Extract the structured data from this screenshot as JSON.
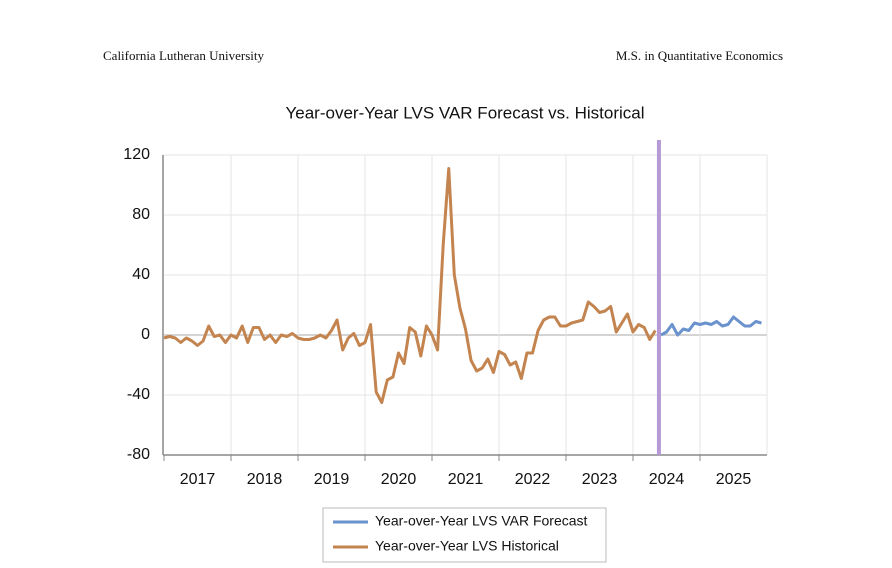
{
  "header": {
    "left": "California Lutheran University",
    "right": "M.S. in Quantitative Economics"
  },
  "chart_data": {
    "type": "line",
    "title": "Year-over-Year LVS VAR Forecast vs. Historical",
    "xlim": [
      2017,
      2026
    ],
    "xticks": [
      2017,
      2018,
      2019,
      2020,
      2021,
      2022,
      2023,
      2024,
      2025
    ],
    "ylim": [
      -80,
      120
    ],
    "yticks": [
      120,
      80,
      40,
      0,
      -40,
      -80
    ],
    "grid": true,
    "series": [
      {
        "name": "Year-over-Year LVS VAR Forecast",
        "color": "#6a92cc",
        "x": [
          2024.417,
          2024.5,
          2024.583,
          2024.667,
          2024.75,
          2024.833,
          2024.917,
          2025.0,
          2025.083,
          2025.167,
          2025.25,
          2025.333,
          2025.417,
          2025.5,
          2025.583,
          2025.667,
          2025.75,
          2025.833,
          2025.917
        ],
        "values": [
          0,
          2,
          7,
          0,
          4,
          3,
          8,
          7,
          8,
          7,
          9,
          6,
          7,
          12,
          9,
          6,
          6,
          9,
          8
        ]
      },
      {
        "name": "Year-over-Year LVS Historical",
        "color": "#c4844f",
        "x": [
          2017.0,
          2017.083,
          2017.167,
          2017.25,
          2017.333,
          2017.417,
          2017.5,
          2017.583,
          2017.667,
          2017.75,
          2017.833,
          2017.917,
          2018.0,
          2018.083,
          2018.167,
          2018.25,
          2018.333,
          2018.417,
          2018.5,
          2018.583,
          2018.667,
          2018.75,
          2018.833,
          2018.917,
          2019.0,
          2019.083,
          2019.167,
          2019.25,
          2019.333,
          2019.417,
          2019.5,
          2019.583,
          2019.667,
          2019.75,
          2019.833,
          2019.917,
          2020.0,
          2020.083,
          2020.167,
          2020.25,
          2020.333,
          2020.417,
          2020.5,
          2020.583,
          2020.667,
          2020.75,
          2020.833,
          2020.917,
          2021.0,
          2021.083,
          2021.167,
          2021.25,
          2021.333,
          2021.417,
          2021.5,
          2021.583,
          2021.667,
          2021.75,
          2021.833,
          2021.917,
          2022.0,
          2022.083,
          2022.167,
          2022.25,
          2022.333,
          2022.417,
          2022.5,
          2022.583,
          2022.667,
          2022.75,
          2022.833,
          2022.917,
          2023.0,
          2023.083,
          2023.167,
          2023.25,
          2023.333,
          2023.417,
          2023.5,
          2023.583,
          2023.667,
          2023.75,
          2023.833,
          2023.917,
          2024.0,
          2024.083,
          2024.167,
          2024.25,
          2024.333
        ],
        "values": [
          -2,
          -1,
          -2,
          -5,
          -2,
          -4,
          -7,
          -4,
          6,
          -1,
          0,
          -5,
          0,
          -2,
          6,
          -5,
          5,
          5,
          -3,
          0,
          -5,
          0,
          -1,
          1,
          -2,
          -3,
          -3,
          -2,
          0,
          -2,
          3,
          10,
          -10,
          -2,
          1,
          -7,
          -5,
          7,
          -38,
          -45,
          -30,
          -28,
          -12,
          -19,
          5,
          2,
          -14,
          6,
          0,
          -10,
          60,
          111,
          40,
          18,
          4,
          -17,
          -24,
          -22,
          -16,
          -25,
          -11,
          -13,
          -20,
          -18,
          -29,
          -12,
          -12,
          3,
          10,
          12,
          12,
          6,
          6,
          8,
          9,
          10,
          22,
          19,
          15,
          16,
          19,
          2,
          8,
          14,
          2,
          7,
          5,
          -3,
          3
        ]
      }
    ]
  }
}
